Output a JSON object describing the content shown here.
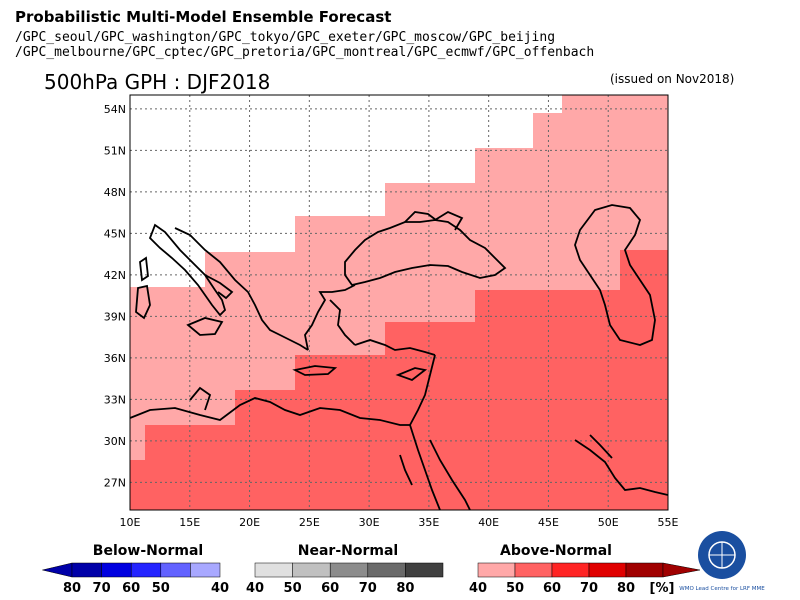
{
  "header": {
    "title": "Probabilistic Multi-Model Ensemble Forecast",
    "centers_line1": "/GPC_seoul/GPC_washington/GPC_tokyo/GPC_exeter/GPC_moscow/GPC_beijing",
    "centers_line2": "/GPC_melbourne/GPC_cptec/GPC_pretoria/GPC_montreal/GPC_ecmwf/GPC_offenbach",
    "map_title": "500hPa GPH : DJF2018",
    "issued": "(issued on Nov2018)"
  },
  "map": {
    "lon_range": [
      10,
      55
    ],
    "lat_range": [
      25,
      55
    ],
    "lat_labels": [
      "54N",
      "51N",
      "48N",
      "45N",
      "42N",
      "39N",
      "36N",
      "33N",
      "30N",
      "27N"
    ],
    "lon_labels": [
      "10E",
      "15E",
      "20E",
      "25E",
      "30E",
      "35E",
      "40E",
      "45E",
      "50E",
      "55E"
    ],
    "colors": {
      "above_40": "#ffa8a8",
      "above_50": "#ff6262",
      "above_60": "#ff2424",
      "above_70": "#e00000",
      "above_80": "#a00000"
    }
  },
  "legend": {
    "below": {
      "title": "Below-Normal",
      "labels": [
        "80",
        "70",
        "60",
        "50",
        "40"
      ],
      "colors": [
        "#0000a8",
        "#0000e0",
        "#2424ff",
        "#6262ff",
        "#a8a8ff"
      ]
    },
    "near": {
      "title": "Near-Normal",
      "labels": [
        "40",
        "50",
        "60",
        "70",
        "80"
      ],
      "colors": [
        "#e0e0e0",
        "#c0c0c0",
        "#8c8c8c",
        "#6a6a6a",
        "#404040"
      ]
    },
    "above": {
      "title": "Above-Normal",
      "labels": [
        "40",
        "50",
        "60",
        "70",
        "80"
      ],
      "colors": [
        "#ffa8a8",
        "#ff6262",
        "#ff2424",
        "#e00000",
        "#a00000"
      ]
    },
    "unit": "[%]"
  },
  "logo": {
    "text": "WMO Lead Centre for LRF MME"
  }
}
